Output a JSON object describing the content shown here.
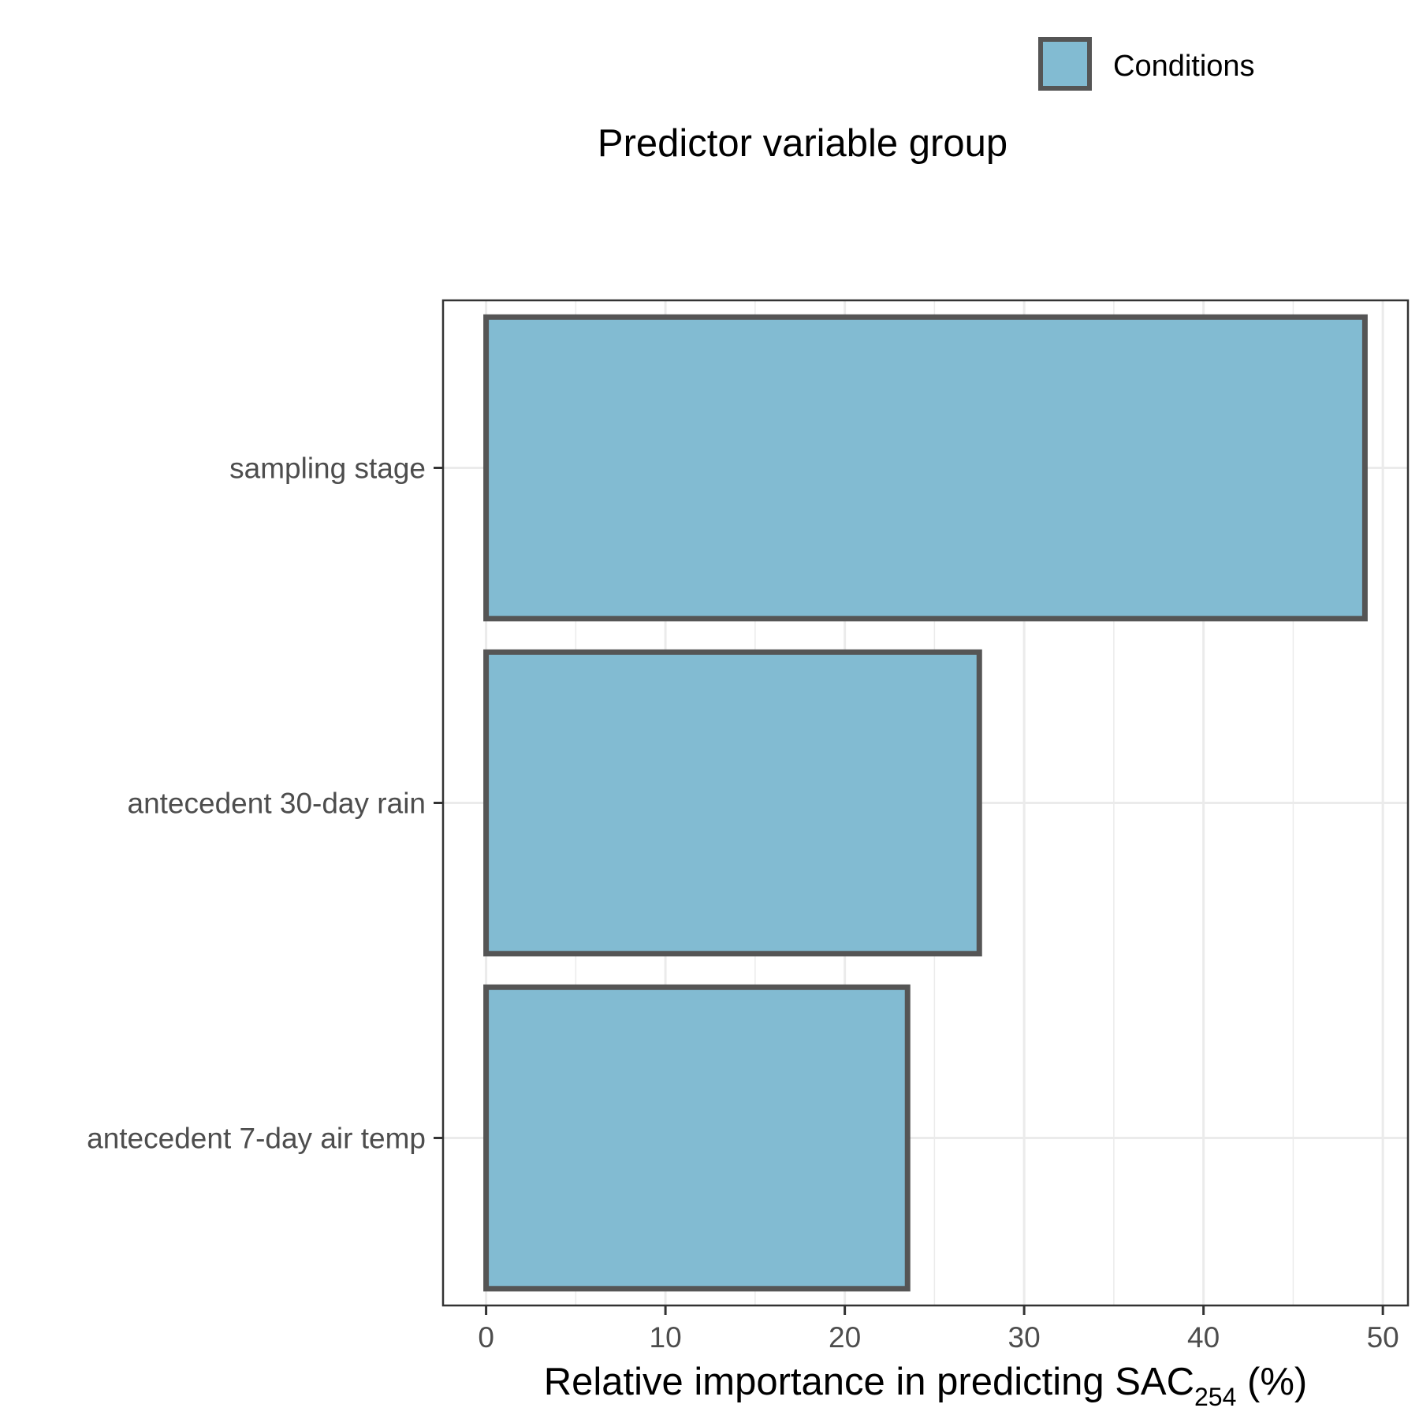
{
  "chart_data": {
    "type": "bar",
    "orientation": "horizontal",
    "categories": [
      "sampling stage",
      "antecedent 30-day rain",
      "antecedent 7-day air temp"
    ],
    "series": [
      {
        "name": "Conditions",
        "values": [
          49.0,
          27.5,
          23.5
        ],
        "color": "#82bbd2",
        "edge_color": "#555555"
      }
    ],
    "xlabel": {
      "main": "Relative importance in predicting SAC",
      "subscript": "254",
      "suffix": " (%)"
    },
    "ylabel": "",
    "xlim": [
      -2.4,
      51.4
    ],
    "xticks": [
      0,
      10,
      20,
      30,
      40,
      50
    ],
    "grid": true,
    "legend": {
      "title": "Predictor variable group",
      "position": "top",
      "entries": [
        "Conditions"
      ]
    }
  }
}
